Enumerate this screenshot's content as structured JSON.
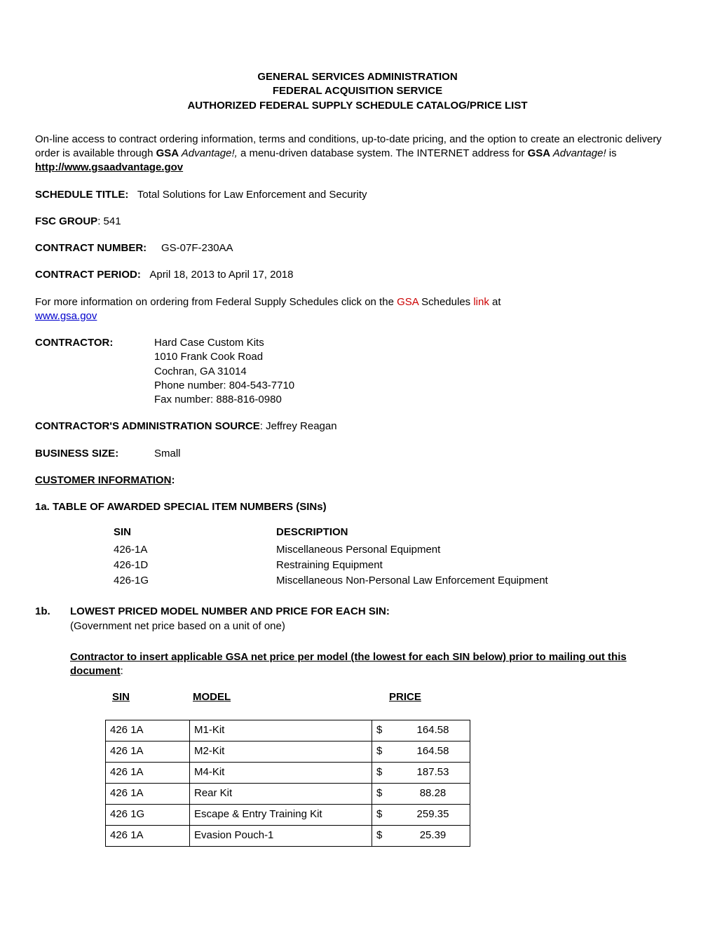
{
  "header": {
    "line1": "GENERAL SERVICES ADMINISTRATION",
    "line2": "FEDERAL ACQUISITION SERVICE",
    "line3": "AUTHORIZED FEDERAL SUPPLY SCHEDULE CATALOG/PRICE LIST"
  },
  "intro": {
    "p1_a": "On-line access to contract ordering information, terms and conditions, up-to-date pricing, and the option to create an electronic delivery order is available through ",
    "p1_gsa": "GSA",
    "p1_adv": " Advantage!,",
    "p1_b": " a menu-driven database system.  The INTERNET address for ",
    "p1_gsa2": "GSA",
    "p1_adv2": " Advantage!",
    "p1_c": " is  ",
    "p1_url": "http://www.gsaadvantage.gov"
  },
  "schedule": {
    "label": "SCHEDULE TITLE:",
    "value": "Total Solutions for Law Enforcement and Security"
  },
  "fsc": {
    "label": "FSC GROUP",
    "value": ":  541"
  },
  "contract_number": {
    "label": "CONTRACT NUMBER:",
    "value": "GS-07F-230AA"
  },
  "contract_period": {
    "label": "CONTRACT PERIOD:",
    "value": "April 18, 2013 to April 17, 2018"
  },
  "more_info": {
    "prefix": "For more information on ordering from Federal Supply Schedules click on the ",
    "gsa": "GSA",
    "middle": " Schedules ",
    "link_word": "link",
    "suffix": " at ",
    "url": "www.gsa.gov"
  },
  "contractor": {
    "label": "CONTRACTOR:",
    "name": "Hard Case Custom Kits",
    "addr1": "1010 Frank Cook Road",
    "addr2": "Cochran, GA 31014",
    "phone": "Phone number:  804-543-7710",
    "fax": "Fax number:   888-816-0980"
  },
  "admin_source": {
    "label": "CONTRACTOR'S ADMINISTRATION SOURCE",
    "value": ":  Jeffrey Reagan"
  },
  "business_size": {
    "label": "BUSINESS SIZE:",
    "value": "Small"
  },
  "customer_info": {
    "label": "CUSTOMER INFORMATION",
    "colon": ":"
  },
  "section_1a": {
    "title": "1a.  TABLE OF AWARDED SPECIAL ITEM NUMBERS (SINs)",
    "col_sin": "SIN",
    "col_desc": "DESCRIPTION",
    "rows": [
      {
        "sin": "426-1A",
        "desc": "Miscellaneous Personal Equipment"
      },
      {
        "sin": "426-1D",
        "desc": "Restraining Equipment"
      },
      {
        "sin": "426-1G",
        "desc": "Miscellaneous Non-Personal Law Enforcement Equipment"
      }
    ]
  },
  "section_1b": {
    "num": "1b.",
    "title": "LOWEST PRICED MODEL NUMBER AND PRICE FOR EACH SIN:",
    "sub": "(Government net price based on a unit of one)",
    "note": "Contractor to insert applicable GSA net price per model (the lowest for each SIN below) prior to mailing out this document",
    "note_colon": ":",
    "head_sin": "SIN",
    "head_model": "MODEL",
    "head_price": "PRICE",
    "currency": "$",
    "rows": [
      {
        "sin": "426 1A",
        "model": "M1-Kit",
        "price": "164.58"
      },
      {
        "sin": "426 1A",
        "model": "M2-Kit",
        "price": "164.58"
      },
      {
        "sin": "426 1A",
        "model": "M4-Kit",
        "price": "187.53"
      },
      {
        "sin": "426 1A",
        "model": "Rear Kit",
        "price": "88.28"
      },
      {
        "sin": "426 1G",
        "model": "Escape & Entry Training Kit",
        "price": "259.35"
      },
      {
        "sin": "426 1A",
        "model": "Evasion Pouch-1",
        "price": "25.39"
      }
    ]
  }
}
